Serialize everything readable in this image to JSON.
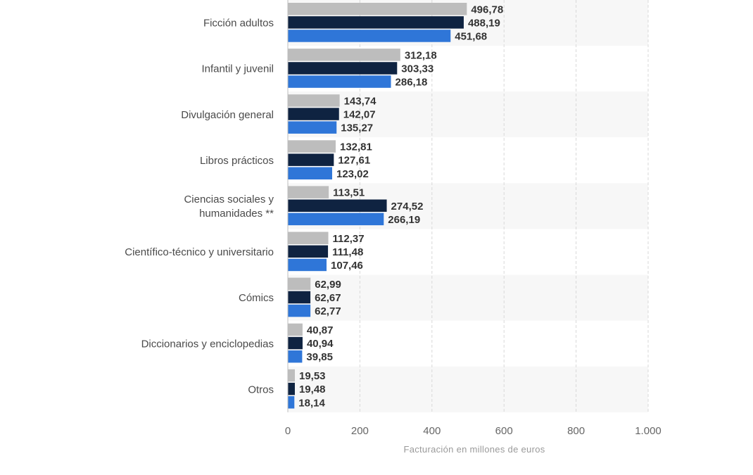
{
  "chart_data": {
    "type": "bar",
    "orientation": "horizontal",
    "categories": [
      [
        "Ficción adultos"
      ],
      [
        "Infantil y juvenil"
      ],
      [
        "Divulgación general"
      ],
      [
        "Libros prácticos"
      ],
      [
        "Ciencias sociales y",
        "humanidades **"
      ],
      [
        "Científico-técnico y universitario"
      ],
      [
        "Cómics"
      ],
      [
        "Diccionarios y enciclopedias"
      ],
      [
        "Otros"
      ]
    ],
    "series": [
      {
        "color": "#bdbdbd",
        "values": [
          496.78,
          312.18,
          143.74,
          132.81,
          113.51,
          112.37,
          62.99,
          40.87,
          19.53
        ],
        "labels": [
          "496,78",
          "312,18",
          "143,74",
          "132,81",
          "113,51",
          "112,37",
          "62,99",
          "40,87",
          "19,53"
        ]
      },
      {
        "color": "#0f2341",
        "values": [
          488.19,
          303.33,
          142.07,
          127.61,
          274.52,
          111.48,
          62.67,
          40.94,
          19.48
        ],
        "labels": [
          "488,19",
          "303,33",
          "142,07",
          "127,61",
          "274,52",
          "111,48",
          "62,67",
          "40,94",
          "19,48"
        ]
      },
      {
        "color": "#2f76d8",
        "values": [
          451.68,
          286.18,
          135.27,
          123.02,
          266.19,
          107.46,
          62.77,
          39.85,
          18.14
        ],
        "labels": [
          "451,68",
          "286,18",
          "135,27",
          "123,02",
          "266,19",
          "107,46",
          "62,77",
          "39,85",
          "18,14"
        ]
      }
    ],
    "xlim": [
      0,
      1000
    ],
    "xticks": [
      0,
      200,
      400,
      600,
      800,
      1000
    ],
    "xtick_labels": [
      "0",
      "200",
      "400",
      "600",
      "800",
      "1.000"
    ],
    "xlabel": "Facturación en millones de euros",
    "grid": "vertical dashed",
    "legend": "none",
    "band_colors": [
      "#f7f7f7",
      "#ffffff"
    ]
  }
}
